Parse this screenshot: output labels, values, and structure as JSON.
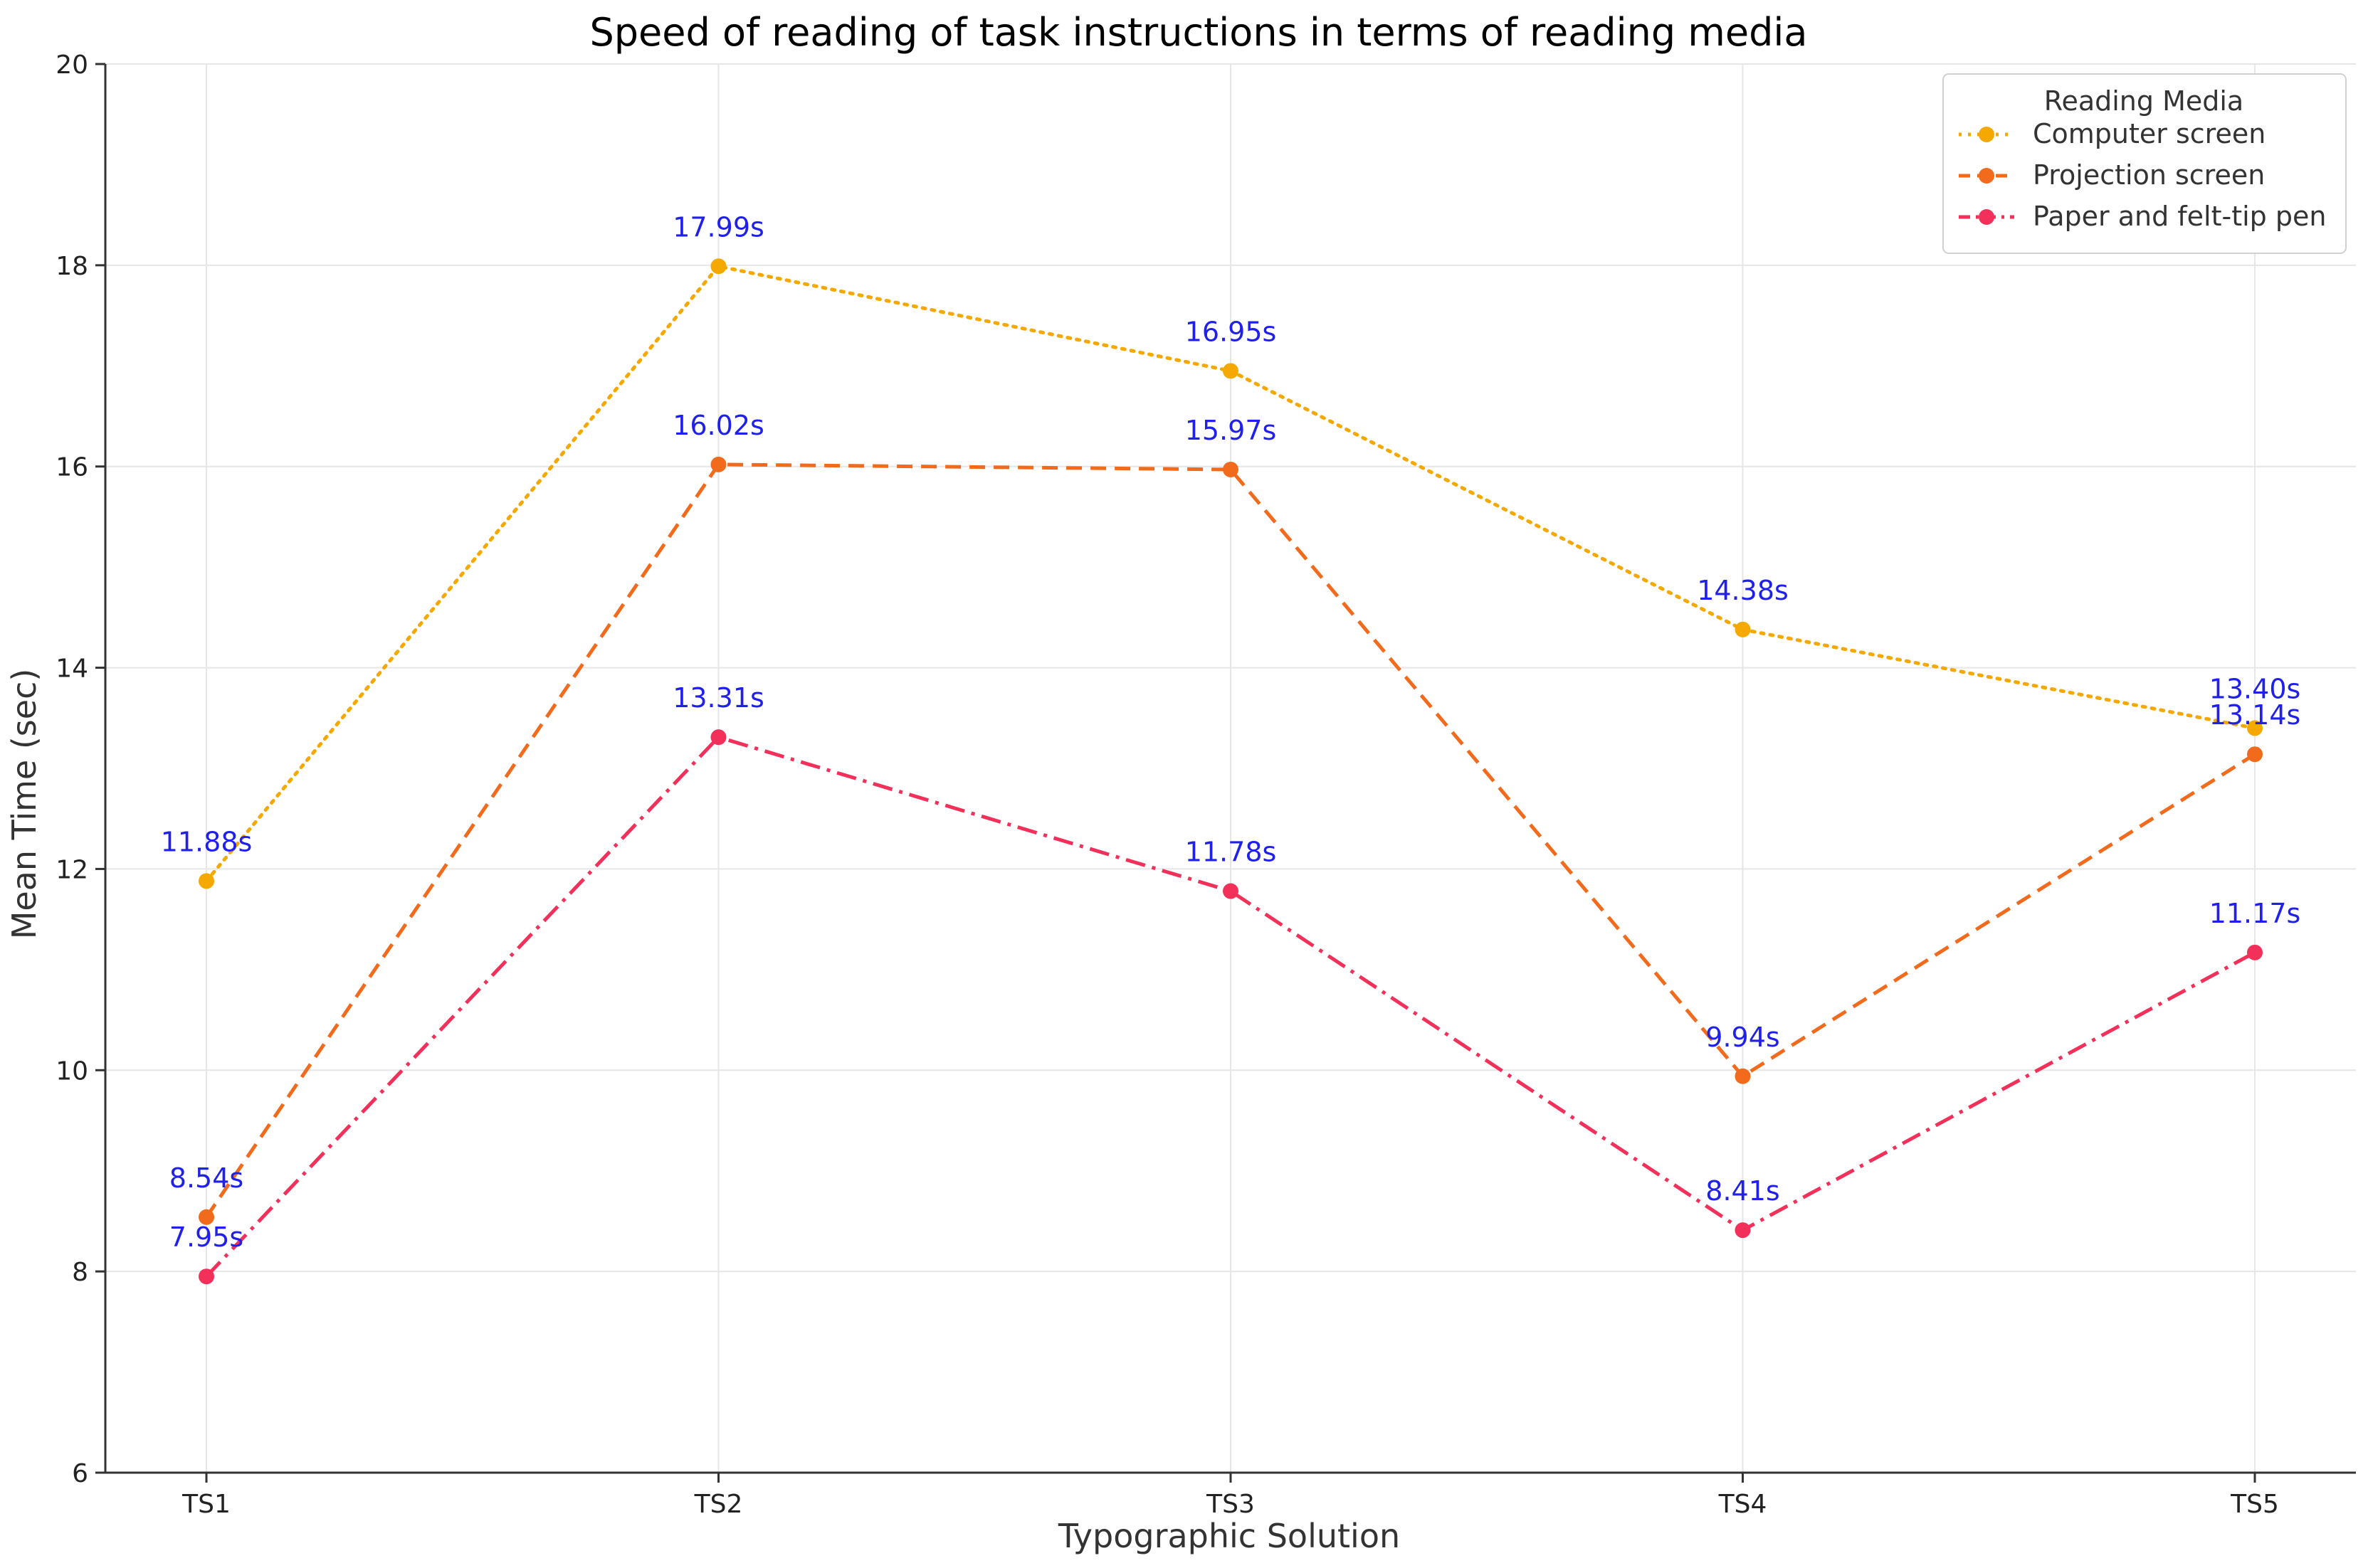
{
  "chart_data": {
    "type": "line",
    "title": "Speed of reading of task instructions in terms of reading media",
    "xlabel": "Typographic Solution",
    "ylabel": "Mean Time (sec)",
    "categories": [
      "TS1",
      "TS2",
      "TS3",
      "TS4",
      "TS5"
    ],
    "ylim": [
      6,
      20
    ],
    "yticks": [
      6,
      8,
      10,
      12,
      14,
      16,
      18,
      20
    ],
    "grid": true,
    "legend": {
      "title": "Reading Media",
      "placement": "top-right"
    },
    "series": [
      {
        "name": "Computer screen",
        "values": [
          11.88,
          17.99,
          16.95,
          14.38,
          13.4
        ],
        "labels": [
          "11.88s",
          "17.99s",
          "16.95s",
          "14.38s",
          "13.40s"
        ],
        "color": "#F5A800",
        "line_style": "dotted"
      },
      {
        "name": "Projection screen",
        "values": [
          8.54,
          16.02,
          15.97,
          9.94,
          13.14
        ],
        "labels": [
          "8.54s",
          "16.02s",
          "15.97s",
          "9.94s",
          "13.14s"
        ],
        "color": "#F26B1D",
        "line_style": "dashed"
      },
      {
        "name": "Paper and felt-tip pen",
        "values": [
          7.95,
          13.31,
          11.78,
          8.41,
          11.17
        ],
        "labels": [
          "7.95s",
          "13.31s",
          "11.78s",
          "8.41s",
          "11.17s"
        ],
        "color": "#F2305A",
        "line_style": "dashdot"
      }
    ]
  }
}
